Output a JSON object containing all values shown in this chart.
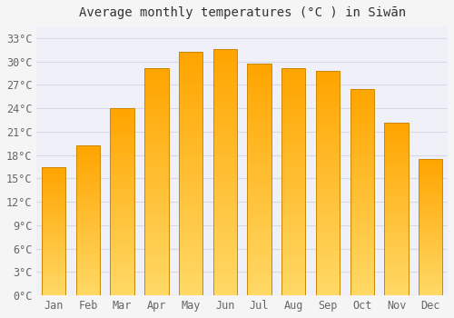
{
  "title": "Average monthly temperatures (°C ) in Siwān",
  "months": [
    "Jan",
    "Feb",
    "Mar",
    "Apr",
    "May",
    "Jun",
    "Jul",
    "Aug",
    "Sep",
    "Oct",
    "Nov",
    "Dec"
  ],
  "temperatures": [
    16.5,
    19.2,
    24.0,
    29.2,
    31.3,
    31.6,
    29.7,
    29.2,
    28.8,
    26.5,
    22.2,
    17.5
  ],
  "bar_color_bottom": "#FFD966",
  "bar_color_top": "#FFA500",
  "bar_edge_color": "#CC8800",
  "background_color": "#f5f5f5",
  "plot_bg_color": "#f0f0f8",
  "grid_color": "#d8d8e8",
  "text_color": "#666666",
  "title_color": "#333333",
  "yticks": [
    0,
    3,
    6,
    9,
    12,
    15,
    18,
    21,
    24,
    27,
    30,
    33
  ],
  "ylim": [
    0,
    34.5
  ],
  "title_fontsize": 10,
  "tick_fontsize": 8.5,
  "font_family": "monospace",
  "bar_width": 0.7
}
